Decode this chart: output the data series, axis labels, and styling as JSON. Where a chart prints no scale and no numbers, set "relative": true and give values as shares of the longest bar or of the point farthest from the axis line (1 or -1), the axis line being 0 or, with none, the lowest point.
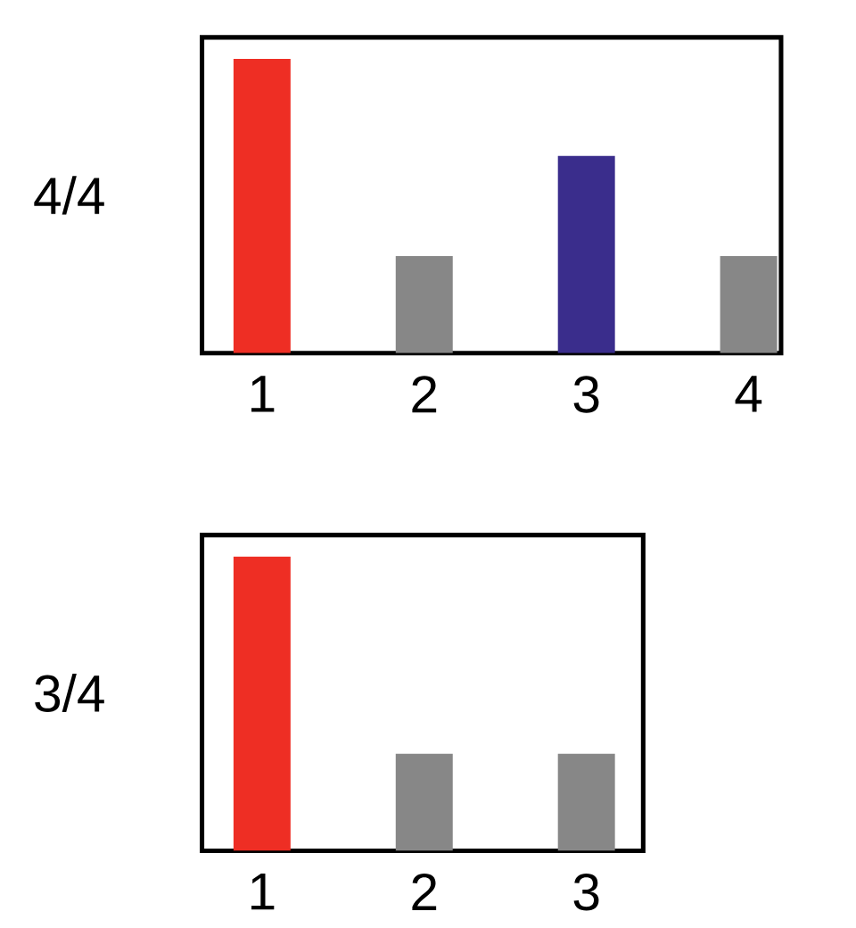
{
  "chart_data": [
    {
      "type": "bar",
      "ylabel": "4/4",
      "categories": [
        "1",
        "2",
        "3",
        "4"
      ],
      "values": [
        1,
        0.33,
        0.67,
        0.33
      ],
      "colors": [
        "#ee2e24",
        "#878787",
        "#3a2d8c",
        "#878787"
      ],
      "relative": true,
      "tick_labels": "x"
    },
    {
      "type": "bar",
      "ylabel": "3/4",
      "categories": [
        "1",
        "2",
        "3"
      ],
      "values": [
        1,
        0.33,
        0.33
      ],
      "colors": [
        "#ee2e24",
        "#878787",
        "#878787"
      ],
      "relative": true,
      "tick_labels": "x"
    }
  ]
}
